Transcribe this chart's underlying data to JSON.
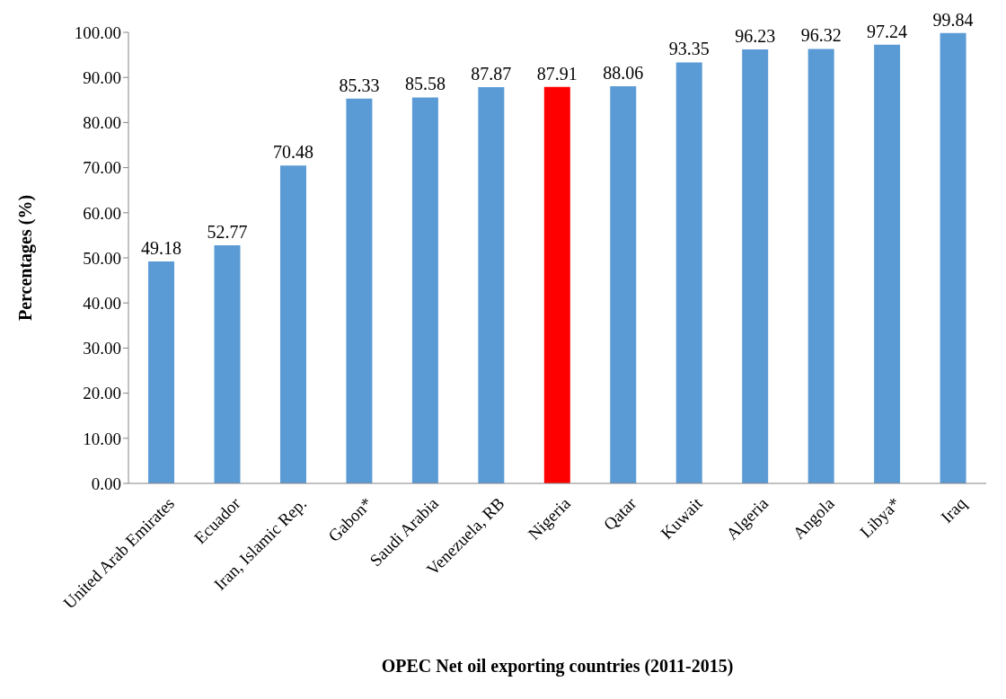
{
  "chart_data": {
    "type": "bar",
    "xlabel": "OPEC Net oil exporting countries (2011-2015)",
    "ylabel": "Percentages (%)",
    "categories": [
      "United Arab Emirates",
      "Ecuador",
      "Iran, Islamic Rep.",
      "Gabon*",
      "Saudi Arabia",
      "Venezuela, RB",
      "Nigeria",
      "Qatar",
      "Kuwait",
      "Algeria",
      "Angola",
      "Libya*",
      "Iraq"
    ],
    "values": [
      49.18,
      52.77,
      70.48,
      85.33,
      85.58,
      87.87,
      87.91,
      88.06,
      93.35,
      96.23,
      96.32,
      97.24,
      99.84
    ],
    "colors": [
      "#5b9bd5",
      "#5b9bd5",
      "#5b9bd5",
      "#5b9bd5",
      "#5b9bd5",
      "#5b9bd5",
      "#ff0000",
      "#5b9bd5",
      "#5b9bd5",
      "#5b9bd5",
      "#5b9bd5",
      "#5b9bd5",
      "#5b9bd5"
    ],
    "ylim": [
      0,
      100
    ],
    "yticks": [
      {
        "value": 0,
        "label": "0.00"
      },
      {
        "value": 10,
        "label": "10.00"
      },
      {
        "value": 20,
        "label": "20.00"
      },
      {
        "value": 30,
        "label": "30.00"
      },
      {
        "value": 40,
        "label": "40.00"
      },
      {
        "value": 50,
        "label": "50.00"
      },
      {
        "value": 60,
        "label": "60.00"
      },
      {
        "value": 70,
        "label": "70.00"
      },
      {
        "value": 80,
        "label": "80.00"
      },
      {
        "value": 90,
        "label": "90.00"
      },
      {
        "value": 100,
        "label": "100.00"
      }
    ],
    "data_labels": true
  }
}
